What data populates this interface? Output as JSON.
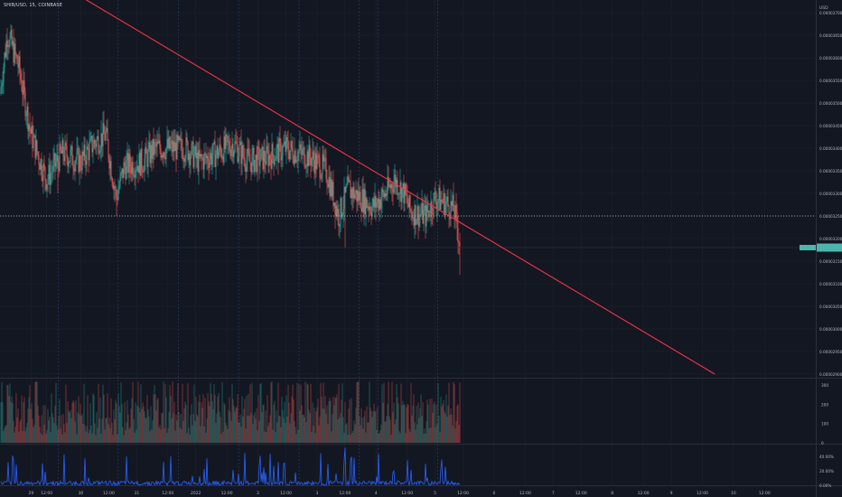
{
  "header": {
    "symbol": "SHIB/USD, 15, COINBASE"
  },
  "axis": {
    "currency": "USD"
  },
  "colors": {
    "background": "#131722",
    "grid": "#1e222d",
    "session": "#2a3a66",
    "up": "#26a69a",
    "down": "#ef5350",
    "trendline": "#f23645",
    "lastprice": "#4db6ac",
    "axis_text": "#b2b5be",
    "rsi": "#2962ff"
  },
  "chart_data": [
    {
      "type": "candlestick",
      "title": "",
      "y_ticks": [
        "0.00003700",
        "0.00003650",
        "0.00003600",
        "0.00003550",
        "0.00003500",
        "0.00003450",
        "0.00003400",
        "0.00003350",
        "0.00003300",
        "0.00003250",
        "0.00003200",
        "0.00003150",
        "0.00003100",
        "0.00003050",
        "0.00003000",
        "0.00002950",
        "0.00002900"
      ],
      "ylim": [
        2.9e-05,
        3.72e-05
      ],
      "dotted_level": 3.25e-05,
      "last_price": 3.18e-05,
      "path": [
        {
          "x": 0.0,
          "y": 3.52e-05
        },
        {
          "x": 0.12,
          "y": 3.655e-05
        },
        {
          "x": 0.3,
          "y": 3.58e-05
        },
        {
          "x": 0.5,
          "y": 3.43e-05
        },
        {
          "x": 0.75,
          "y": 3.33e-05
        },
        {
          "x": 1.0,
          "y": 3.39e-05
        },
        {
          "x": 1.3,
          "y": 3.37e-05
        },
        {
          "x": 1.5,
          "y": 3.41e-05
        },
        {
          "x": 1.7,
          "y": 3.43e-05
        },
        {
          "x": 1.87,
          "y": 3.29e-05
        },
        {
          "x": 2.0,
          "y": 3.36e-05
        },
        {
          "x": 2.3,
          "y": 3.37e-05
        },
        {
          "x": 2.5,
          "y": 3.4e-05
        },
        {
          "x": 3.0,
          "y": 3.4e-05
        },
        {
          "x": 3.2,
          "y": 3.37e-05
        },
        {
          "x": 3.5,
          "y": 3.39e-05
        },
        {
          "x": 3.75,
          "y": 3.41e-05
        },
        {
          "x": 4.0,
          "y": 3.37e-05
        },
        {
          "x": 4.3,
          "y": 3.38e-05
        },
        {
          "x": 4.6,
          "y": 3.4e-05
        },
        {
          "x": 5.0,
          "y": 3.38e-05
        },
        {
          "x": 5.25,
          "y": 3.35e-05
        },
        {
          "x": 5.45,
          "y": 3.25e-05
        },
        {
          "x": 5.6,
          "y": 3.31e-05
        },
        {
          "x": 5.8,
          "y": 3.29e-05
        },
        {
          "x": 6.0,
          "y": 3.27e-05
        },
        {
          "x": 6.2,
          "y": 3.3e-05
        },
        {
          "x": 6.35,
          "y": 3.33e-05
        },
        {
          "x": 6.5,
          "y": 3.3e-05
        },
        {
          "x": 6.6,
          "y": 3.26e-05
        },
        {
          "x": 6.85,
          "y": 3.25e-05
        },
        {
          "x": 7.0,
          "y": 3.29e-05
        },
        {
          "x": 7.15,
          "y": 3.28e-05
        },
        {
          "x": 7.3,
          "y": 3.265e-05
        },
        {
          "x": 7.35,
          "y": 3.23e-05
        },
        {
          "x": 7.4,
          "y": 3.19e-05
        }
      ],
      "trendline": {
        "x1": 1.0,
        "y1": 3.76e-05,
        "x2": 11.5,
        "y2": 2.9e-05
      },
      "x_ticks": [
        "29",
        "12:00",
        "30",
        "12:00",
        "31",
        "12:00",
        "2022",
        "12:00",
        "2",
        "12:00",
        "3",
        "12:00",
        "4",
        "12:00",
        "5",
        "12:00",
        "6",
        "12:00",
        "7",
        "12:00",
        "8",
        "12:00",
        "9",
        "12:00",
        "10",
        "12:00"
      ],
      "x_tick_x": [
        0.5,
        0.75,
        1.3,
        1.75,
        2.2,
        2.7,
        3.15,
        3.65,
        4.15,
        4.6,
        5.1,
        5.55,
        6.05,
        6.55,
        7.0,
        7.45,
        7.95,
        8.45,
        8.9,
        9.35,
        9.85,
        10.35,
        10.8,
        11.3,
        11.8,
        12.3
      ],
      "session_lines_x": [
        0.94,
        1.9,
        2.87,
        3.84,
        4.81,
        5.78,
        6.08,
        7.04
      ],
      "date_lines_x": [
        0.94,
        1.9,
        2.87,
        3.84,
        4.81,
        5.78,
        6.08,
        7.04
      ]
    },
    {
      "type": "bar",
      "title": "",
      "y_ticks": [
        "300",
        "200",
        "100",
        "0"
      ],
      "ylim": [
        0,
        330
      ]
    },
    {
      "type": "line",
      "title": "",
      "y_ticks": [
        "40.00%",
        "20.00%",
        "0.00%"
      ],
      "ylim": [
        0,
        55
      ]
    }
  ]
}
